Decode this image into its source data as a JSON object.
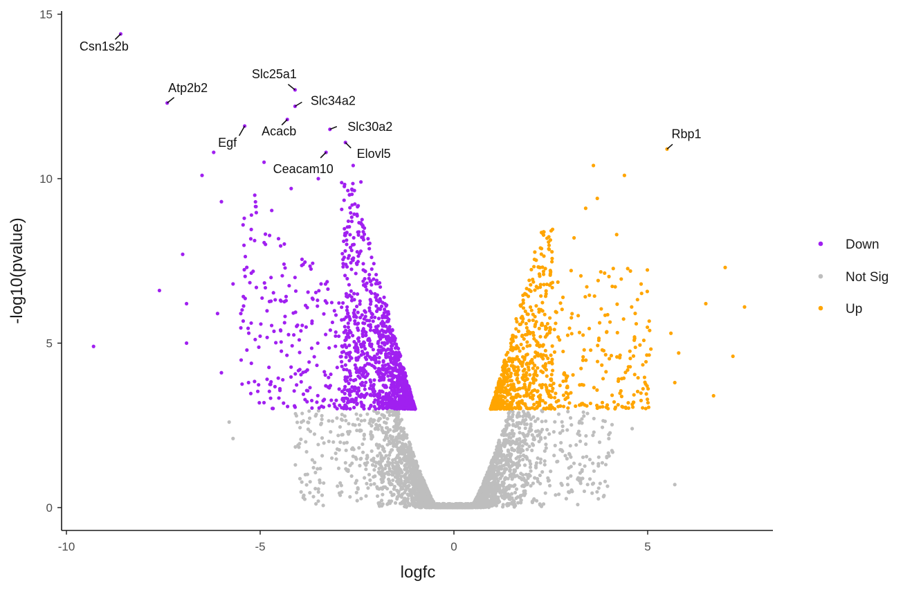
{
  "chart_data": {
    "type": "scatter",
    "title": "",
    "xlabel": "logfc",
    "ylabel": "-log10(pvalue)",
    "xlim": [
      -10.2,
      8.2
    ],
    "ylim": [
      -0.7,
      15.3
    ],
    "x_ticks": [
      {
        "value": -10,
        "label": "-10"
      },
      {
        "value": -5,
        "label": "-5"
      },
      {
        "value": 0,
        "label": "0"
      },
      {
        "value": 5,
        "label": "5"
      }
    ],
    "y_ticks": [
      {
        "value": 0,
        "label": "0"
      },
      {
        "value": 5,
        "label": "5"
      },
      {
        "value": 10,
        "label": "10"
      },
      {
        "value": 15,
        "label": "15"
      }
    ],
    "grid": false,
    "legend_position": "right",
    "thresholds": {
      "abs_logfc": 1.0,
      "neg_log10_pvalue": 3.0
    },
    "series": [
      {
        "name": "Down",
        "color": "#a020f0"
      },
      {
        "name": "Not Sig",
        "color": "#bebebe"
      },
      {
        "name": "Up",
        "color": "#ffa500"
      }
    ],
    "labeled_points": [
      {
        "gene": "Csn1s2b",
        "x": -8.6,
        "y": 14.4,
        "group": "Down"
      },
      {
        "gene": "Atp2b2",
        "x": -7.4,
        "y": 12.3,
        "group": "Down"
      },
      {
        "gene": "Slc25a1",
        "x": -4.1,
        "y": 12.7,
        "group": "Down"
      },
      {
        "gene": "Slc34a2",
        "x": -4.1,
        "y": 12.2,
        "group": "Down"
      },
      {
        "gene": "Egf",
        "x": -5.4,
        "y": 11.6,
        "group": "Down"
      },
      {
        "gene": "Acacb",
        "x": -4.3,
        "y": 11.8,
        "group": "Down"
      },
      {
        "gene": "Slc30a2",
        "x": -3.2,
        "y": 11.5,
        "group": "Down"
      },
      {
        "gene": "Elovl5",
        "x": -2.8,
        "y": 11.1,
        "group": "Down"
      },
      {
        "gene": "Ceacam10",
        "x": -3.3,
        "y": 10.8,
        "group": "Down"
      },
      {
        "gene": "Rbp1",
        "x": 5.5,
        "y": 10.9,
        "group": "Up"
      }
    ],
    "scattered_points": [
      {
        "x": -9.3,
        "y": 4.9,
        "group": "Down"
      },
      {
        "x": -7.6,
        "y": 6.6,
        "group": "Down"
      },
      {
        "x": -7.0,
        "y": 7.7,
        "group": "Down"
      },
      {
        "x": -6.9,
        "y": 6.2,
        "group": "Down"
      },
      {
        "x": -6.9,
        "y": 5.0,
        "group": "Down"
      },
      {
        "x": -6.5,
        "y": 10.1,
        "group": "Down"
      },
      {
        "x": -6.2,
        "y": 10.8,
        "group": "Down"
      },
      {
        "x": -6.0,
        "y": 9.3,
        "group": "Down"
      },
      {
        "x": -6.0,
        "y": 4.1,
        "group": "Down"
      },
      {
        "x": -6.1,
        "y": 5.9,
        "group": "Down"
      },
      {
        "x": -5.7,
        "y": 6.8,
        "group": "Down"
      },
      {
        "x": -5.5,
        "y": 5.9,
        "group": "Down"
      },
      {
        "x": -4.9,
        "y": 10.5,
        "group": "Down"
      },
      {
        "x": -4.2,
        "y": 9.7,
        "group": "Down"
      },
      {
        "x": -3.5,
        "y": 10.0,
        "group": "Down"
      },
      {
        "x": -2.6,
        "y": 10.4,
        "group": "Down"
      },
      {
        "x": -2.4,
        "y": 9.9,
        "group": "Down"
      },
      {
        "x": -5.3,
        "y": 3.8,
        "group": "Down"
      },
      {
        "x": 3.6,
        "y": 10.4,
        "group": "Up"
      },
      {
        "x": 4.4,
        "y": 10.1,
        "group": "Up"
      },
      {
        "x": 3.7,
        "y": 9.4,
        "group": "Up"
      },
      {
        "x": 3.4,
        "y": 9.1,
        "group": "Up"
      },
      {
        "x": 7.0,
        "y": 7.3,
        "group": "Up"
      },
      {
        "x": 7.5,
        "y": 6.1,
        "group": "Up"
      },
      {
        "x": 6.5,
        "y": 6.2,
        "group": "Up"
      },
      {
        "x": 7.2,
        "y": 4.6,
        "group": "Up"
      },
      {
        "x": 5.8,
        "y": 4.7,
        "group": "Up"
      },
      {
        "x": 5.6,
        "y": 5.3,
        "group": "Up"
      },
      {
        "x": 6.7,
        "y": 3.4,
        "group": "Up"
      },
      {
        "x": 5.7,
        "y": 3.8,
        "group": "Up"
      },
      {
        "x": 3.1,
        "y": 8.2,
        "group": "Up"
      },
      {
        "x": 4.2,
        "y": 8.3,
        "group": "Up"
      },
      {
        "x": -5.8,
        "y": 2.6,
        "group": "Not Sig"
      },
      {
        "x": -5.7,
        "y": 2.1,
        "group": "Not Sig"
      },
      {
        "x": 5.7,
        "y": 0.7,
        "group": "Not Sig"
      },
      {
        "x": 4.6,
        "y": 2.4,
        "group": "Not Sig"
      }
    ]
  },
  "legend": {
    "items": [
      {
        "label": "Down",
        "color": "#a020f0"
      },
      {
        "label": "Not Sig",
        "color": "#bebebe"
      },
      {
        "label": "Up",
        "color": "#ffa500"
      }
    ]
  }
}
